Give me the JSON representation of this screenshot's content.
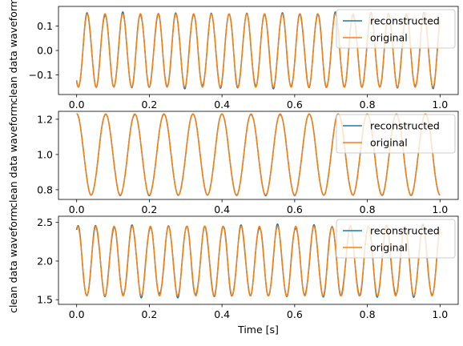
{
  "colors": {
    "reconstructed": "#1f77b4",
    "original": "#ff7f0e",
    "legend_border": "#cccccc",
    "axis": "#000000"
  },
  "chart_data": [
    {
      "type": "line",
      "ylabel": "clean data waveform",
      "xlim": [
        -0.05,
        1.05
      ],
      "ylim": [
        -0.18,
        0.18
      ],
      "xticks": [
        0.0,
        0.2,
        0.4,
        0.6,
        0.8,
        1.0
      ],
      "xtick_labels": [
        "0.0",
        "0.2",
        "0.4",
        "0.6",
        "0.8",
        "1.0"
      ],
      "yticks": [
        -0.1,
        0.0,
        0.1
      ],
      "ytick_labels": [
        "−0.1",
        "0.0",
        "0.1"
      ],
      "legend": "top-right",
      "signal": {
        "offset": 0.0,
        "amplitude": 0.15,
        "frequency_hz": 20.5,
        "phase": -2.2,
        "noise_amplitude": 0.008
      },
      "series": [
        {
          "name": "reconstructed",
          "color": "#1f77b4"
        },
        {
          "name": "original",
          "color": "#ff7f0e"
        }
      ]
    },
    {
      "type": "line",
      "ylabel": "clean data waveform",
      "xlim": [
        -0.05,
        1.05
      ],
      "ylim": [
        0.745,
        1.245
      ],
      "xticks": [
        0.0,
        0.2,
        0.4,
        0.6,
        0.8,
        1.0
      ],
      "xtick_labels": [
        "0.0",
        "0.2",
        "0.4",
        "0.6",
        "0.8",
        "1.0"
      ],
      "yticks": [
        0.8,
        1.0,
        1.2
      ],
      "ytick_labels": [
        "0.8",
        "1.0",
        "1.2"
      ],
      "legend": "top-right",
      "signal": {
        "offset": 1.0,
        "amplitude": 0.23,
        "frequency_hz": 12.5,
        "phase": 1.57,
        "noise_amplitude": 0.004
      },
      "series": [
        {
          "name": "reconstructed",
          "color": "#1f77b4"
        },
        {
          "name": "original",
          "color": "#ff7f0e"
        }
      ]
    },
    {
      "type": "line",
      "ylabel": "clean data waveform",
      "xlabel": "Time [s]",
      "xlim": [
        -0.05,
        1.05
      ],
      "ylim": [
        1.44,
        2.58
      ],
      "xticks": [
        0.0,
        0.2,
        0.4,
        0.6,
        0.8,
        1.0
      ],
      "xtick_labels": [
        "0.0",
        "0.2",
        "0.4",
        "0.6",
        "0.8",
        "1.0"
      ],
      "yticks": [
        1.5,
        2.0,
        2.5
      ],
      "ytick_labels": [
        "1.5",
        "2.0",
        "2.5"
      ],
      "legend": "top-right",
      "signal": {
        "offset": 2.0,
        "amplitude": 0.45,
        "frequency_hz": 20.0,
        "phase": 1.2,
        "noise_amplitude": 0.03
      },
      "series": [
        {
          "name": "reconstructed",
          "color": "#1f77b4"
        },
        {
          "name": "original",
          "color": "#ff7f0e"
        }
      ]
    }
  ]
}
